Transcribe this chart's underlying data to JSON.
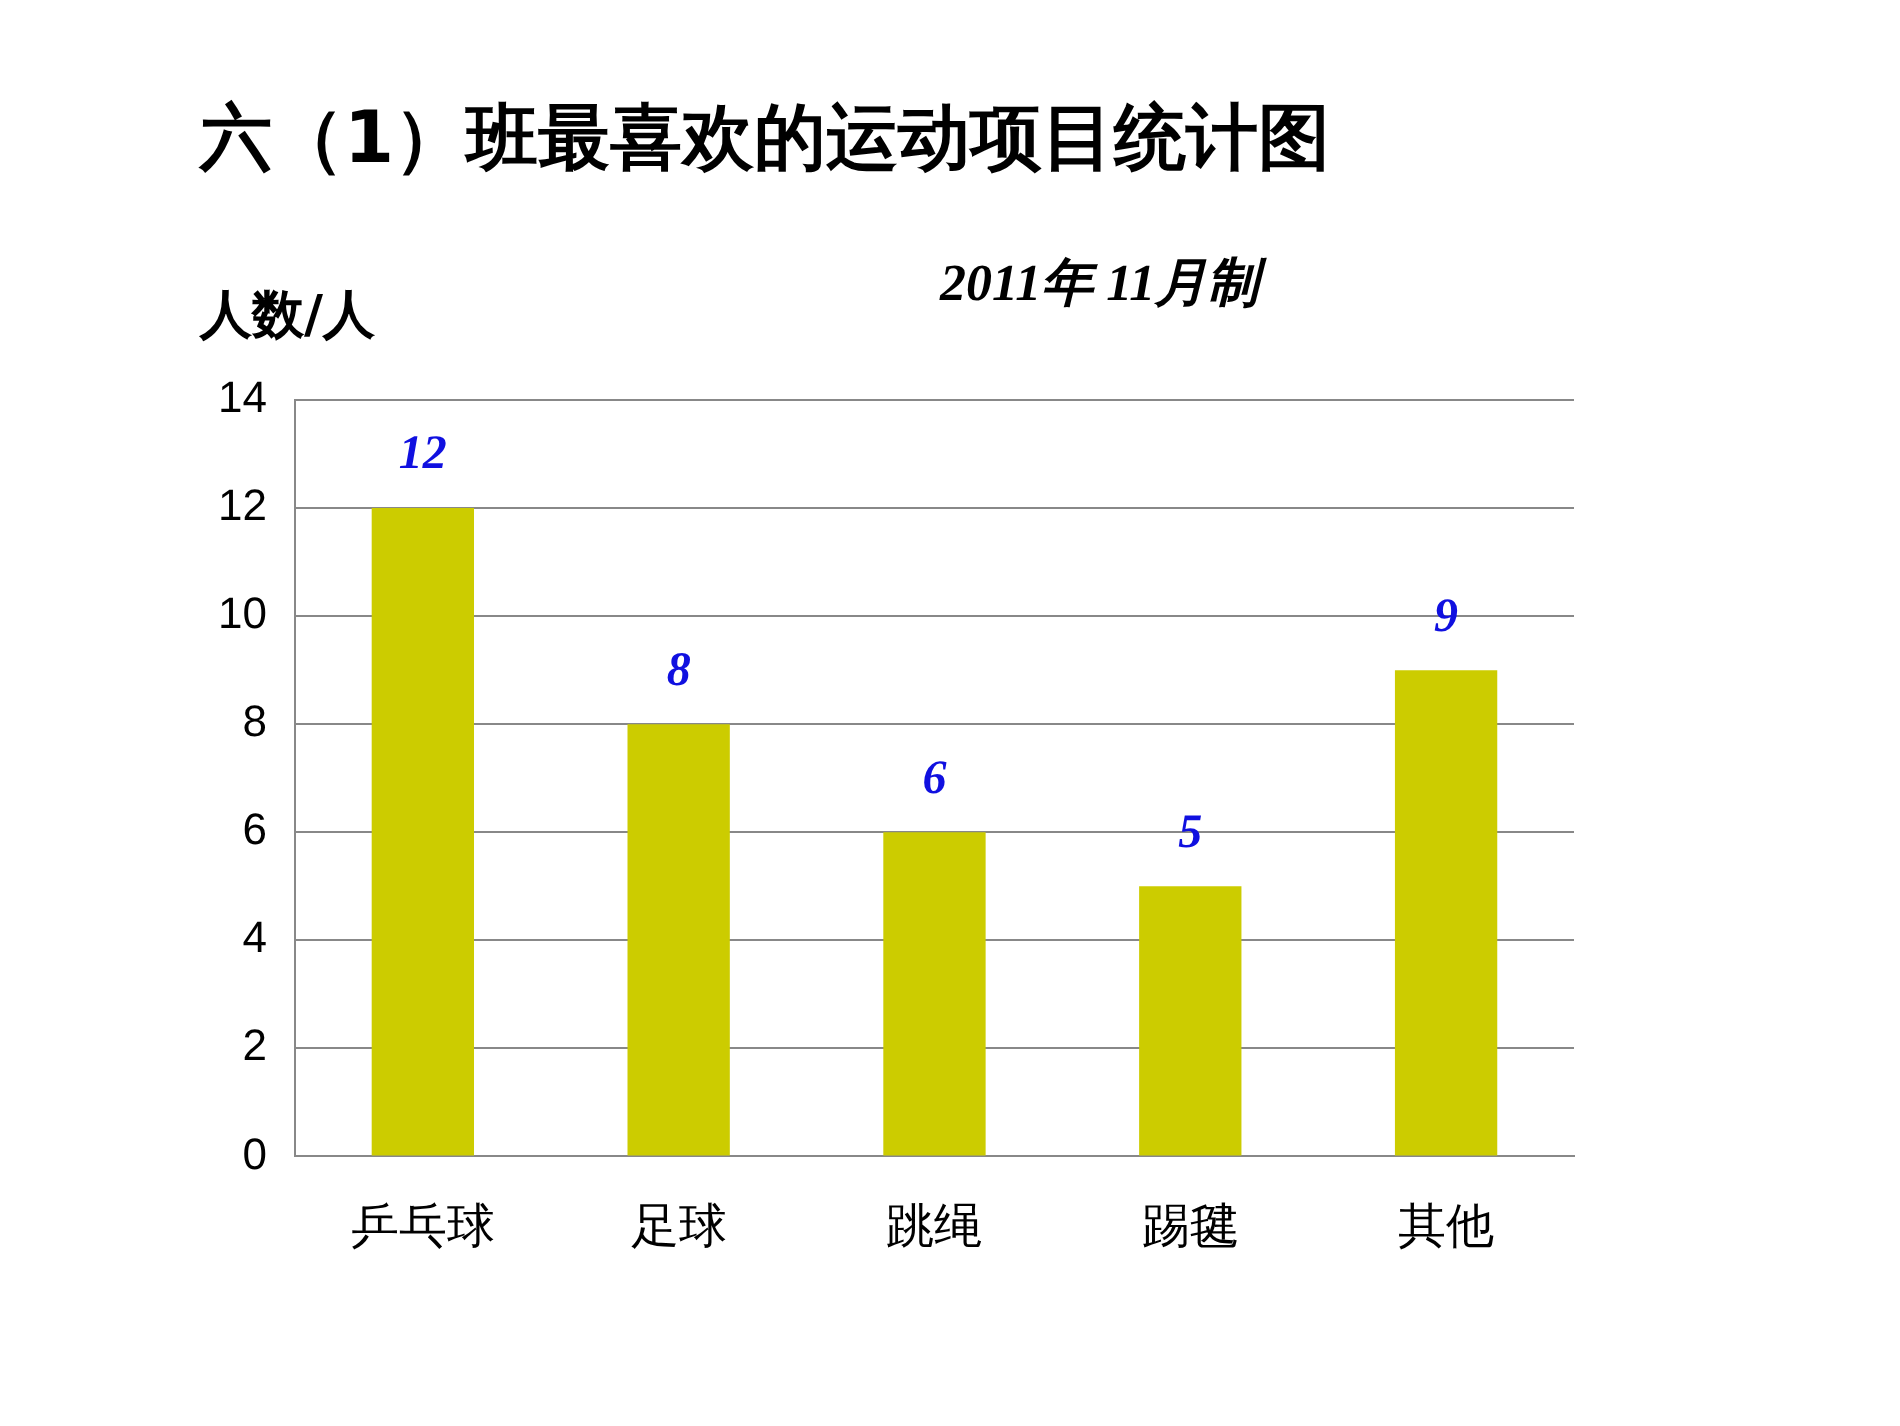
{
  "chart_data": {
    "type": "bar",
    "title": "六（1）班最喜欢的运动项目统计图",
    "subtitle": "2011年 11月制",
    "ylabel": "人数/人",
    "categories": [
      "乒乓球",
      "足球",
      "跳绳",
      "踢毽",
      "其他"
    ],
    "values": [
      12,
      8,
      6,
      5,
      9
    ],
    "color": "#cccc00",
    "ylim": [
      0,
      14
    ],
    "yticks": [
      0,
      2,
      4,
      6,
      8,
      10,
      12,
      14
    ],
    "grid": "y",
    "data_labels": true,
    "legend": false
  }
}
